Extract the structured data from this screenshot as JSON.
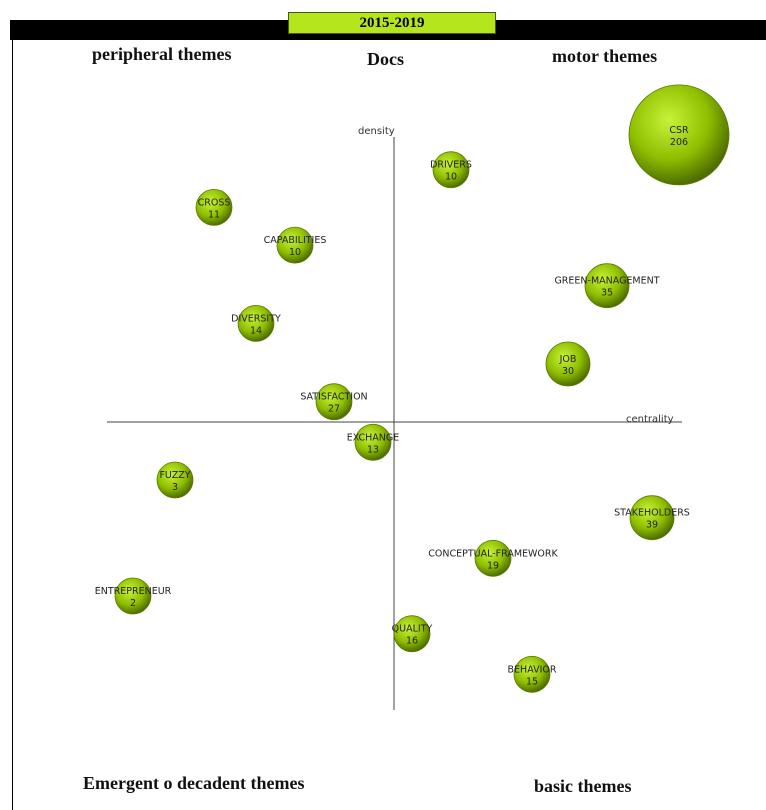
{
  "period": "2015-2019",
  "quadrants": {
    "top_left": "peripheral themes",
    "top_center": "Docs",
    "top_right": "motor themes",
    "bottom_left": "Emergent o decadent themes",
    "bottom_right": "basic themes"
  },
  "colors": {
    "bubble": "#9acd00",
    "bubble_dark": "#5a7d00",
    "period_bg": "#b5e61d"
  },
  "chart_data": {
    "type": "scatter",
    "xlabel": "centrality",
    "ylabel": "density",
    "grid": false,
    "points": [
      {
        "label": "CSR",
        "docs": 206,
        "x": 0.95,
        "y": 0.99
      },
      {
        "label": "DRIVERS",
        "docs": 10,
        "x": 0.19,
        "y": 0.87
      },
      {
        "label": "CROSS",
        "docs": 11,
        "x": -0.6,
        "y": 0.74
      },
      {
        "label": "CAPABILITIES",
        "docs": 10,
        "x": -0.33,
        "y": 0.61
      },
      {
        "label": "GREEN-MANAGEMENT",
        "docs": 35,
        "x": 0.71,
        "y": 0.47
      },
      {
        "label": "DIVERSITY",
        "docs": 14,
        "x": -0.46,
        "y": 0.34
      },
      {
        "label": "JOB",
        "docs": 30,
        "x": 0.58,
        "y": 0.2
      },
      {
        "label": "SATISFACTION",
        "docs": 27,
        "x": -0.2,
        "y": 0.07
      },
      {
        "label": "EXCHANGE",
        "docs": 13,
        "x": -0.07,
        "y": -0.07
      },
      {
        "label": "FUZZY",
        "docs": 3,
        "x": -0.73,
        "y": -0.2
      },
      {
        "label": "STAKEHOLDERS",
        "docs": 39,
        "x": 0.86,
        "y": -0.33
      },
      {
        "label": "CONCEPTUAL-FRAMEWORK",
        "docs": 19,
        "x": 0.33,
        "y": -0.47
      },
      {
        "label": "ENTREPRENEUR",
        "docs": 2,
        "x": -0.87,
        "y": -0.6
      },
      {
        "label": "QUALITY",
        "docs": 16,
        "x": 0.06,
        "y": -0.73
      },
      {
        "label": "BEHAVIOR",
        "docs": 15,
        "x": 0.46,
        "y": -0.87
      }
    ]
  }
}
